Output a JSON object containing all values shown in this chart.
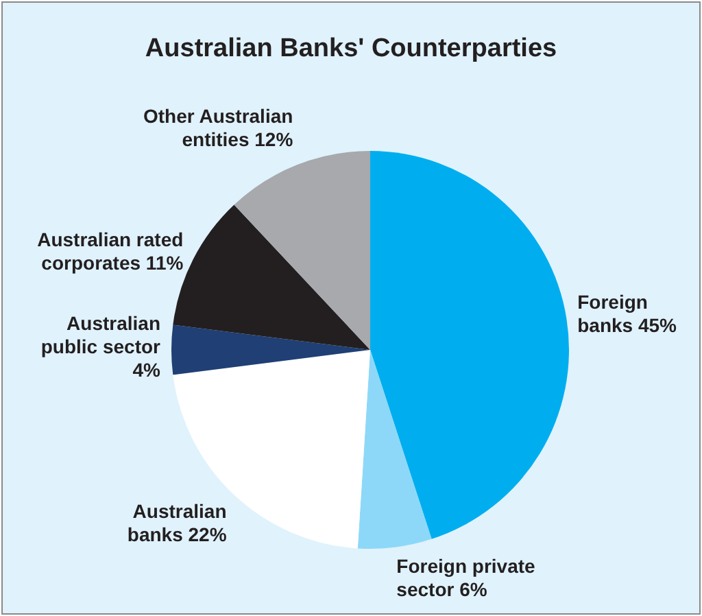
{
  "chart_data": {
    "type": "pie",
    "title": "Australian Banks' Counterparties",
    "categories": [
      "Foreign banks",
      "Foreign private sector",
      "Australian banks",
      "Australian public sector",
      "Australian rated corporates",
      "Other Australian entities"
    ],
    "values": [
      45,
      6,
      22,
      4,
      11,
      12
    ],
    "colors": [
      "#00aeef",
      "#8dd8f8",
      "#ffffff",
      "#1f3f75",
      "#231f20",
      "#a7a9ac"
    ],
    "value_labels": [
      "45%",
      "6%",
      "22%",
      "4%",
      "11%",
      "12%"
    ],
    "legend": false
  }
}
